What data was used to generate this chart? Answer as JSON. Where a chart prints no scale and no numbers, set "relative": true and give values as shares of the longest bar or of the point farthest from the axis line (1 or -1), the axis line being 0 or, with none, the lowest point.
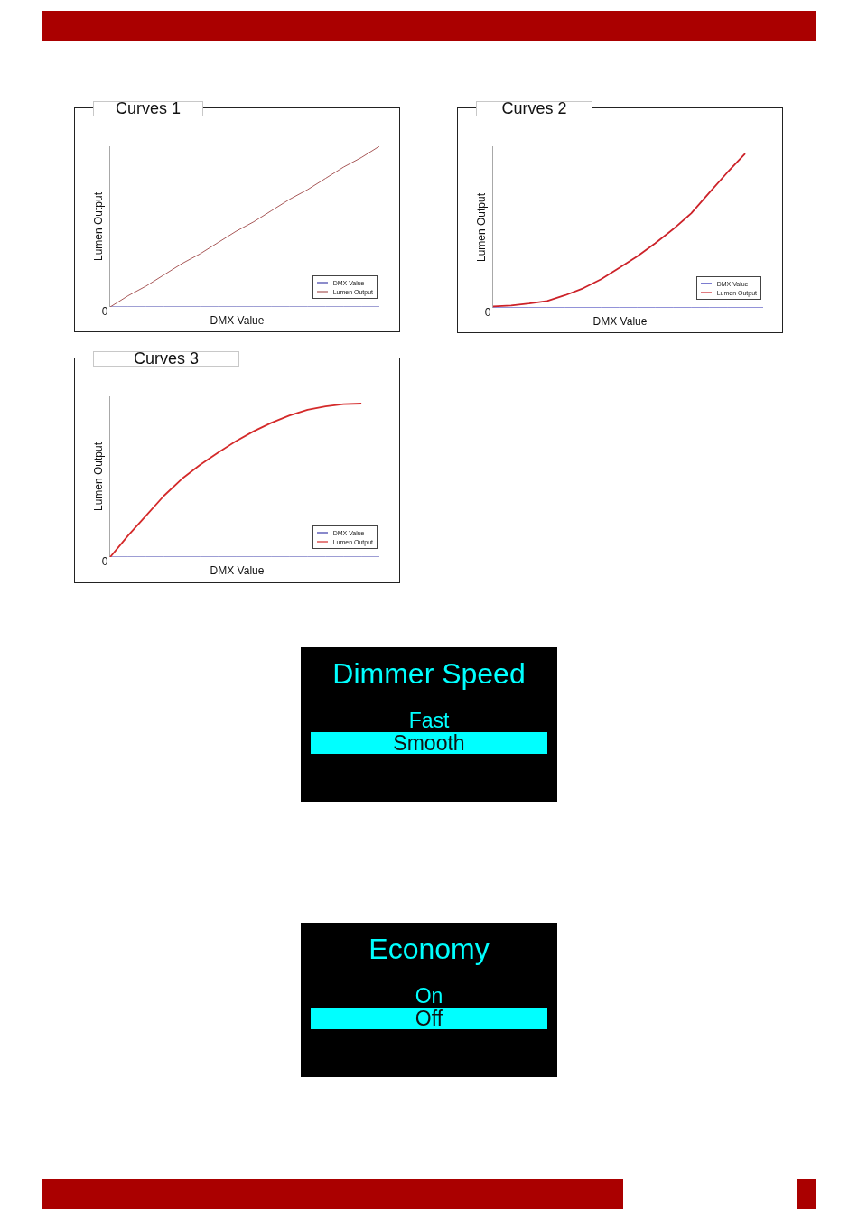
{
  "chart_data": [
    {
      "type": "line",
      "title": "Curves 1",
      "xlabel": "DMX Value",
      "ylabel": "Lumen Output",
      "relative": true,
      "legend": "bottom right",
      "annotations": [
        "0"
      ],
      "categories": [
        null,
        null,
        null,
        null,
        null,
        null,
        null,
        null,
        null,
        null,
        null,
        null,
        null,
        null,
        null,
        null
      ],
      "series": [
        {
          "name": "DMX Value",
          "color": "#4040a8",
          "values": [
            0,
            0,
            0,
            0,
            0,
            0,
            0,
            0,
            0,
            0,
            0,
            0,
            0,
            0,
            0,
            0
          ]
        },
        {
          "name": "Lumen Output",
          "color": "#a85858",
          "values": [
            0,
            0.07,
            0.13,
            0.2,
            0.27,
            0.33,
            0.4,
            0.47,
            0.53,
            0.6,
            0.67,
            0.73,
            0.8,
            0.87,
            0.93,
            1
          ]
        }
      ]
    },
    {
      "type": "line",
      "title": "Curves 2",
      "xlabel": "DMX Value",
      "ylabel": "Lumen Output",
      "relative": true,
      "legend": "bottom right",
      "annotations": [
        "0"
      ],
      "categories": [
        null,
        null,
        null,
        null,
        null,
        null,
        null,
        null,
        null,
        null,
        null,
        null,
        null,
        null,
        null,
        null
      ],
      "series": [
        {
          "name": "DMX Value",
          "color": "#2424b0",
          "values": [
            0,
            0,
            0,
            0,
            0,
            0,
            0,
            0,
            0,
            0,
            0,
            0,
            0,
            0,
            0,
            0
          ]
        },
        {
          "name": "Lumen Output",
          "color": "#cc2229",
          "values": [
            0.01,
            0.015,
            0.028,
            0.045,
            0.082,
            0.127,
            0.186,
            0.259,
            0.333,
            0.418,
            0.51,
            0.612,
            0.745,
            0.876,
            1,
            null
          ]
        }
      ]
    },
    {
      "type": "line",
      "title": "Curves 3",
      "xlabel": "DMX Value",
      "ylabel": "Lumen Output",
      "relative": true,
      "legend": "bottom right",
      "annotations": [
        "0"
      ],
      "categories": [
        null,
        null,
        null,
        null,
        null,
        null,
        null,
        null,
        null,
        null,
        null,
        null,
        null,
        null,
        null,
        null
      ],
      "series": [
        {
          "name": "DMX Value",
          "color": "#3a3aa8",
          "values": [
            0,
            0,
            0,
            0,
            0,
            0,
            0,
            0,
            0,
            0,
            0,
            0,
            0,
            0,
            0,
            0
          ]
        },
        {
          "name": "Lumen Output",
          "color": "#d42a2a",
          "values": [
            0,
            0.14,
            0.27,
            0.4,
            0.51,
            0.6,
            0.68,
            0.754,
            0.82,
            0.876,
            0.923,
            0.959,
            0.982,
            0.996,
            1,
            null
          ]
        }
      ]
    },
    {
      "type": "other",
      "title": "Dimmer Speed",
      "categories": [
        "Fast",
        "Smooth"
      ],
      "colors": [
        "#000000",
        "#00ffff"
      ],
      "color": "#00ffff"
    },
    {
      "type": "other",
      "title": "Economy",
      "categories": [
        "On",
        "Off"
      ],
      "colors": [
        "#000000",
        "#00ffff"
      ],
      "color": "#00ffff"
    }
  ]
}
